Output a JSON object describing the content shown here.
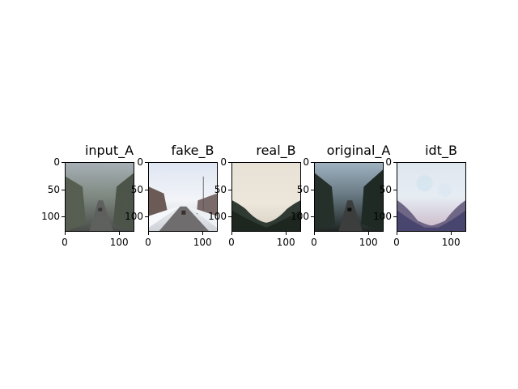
{
  "panels": [
    {
      "title": "input_A",
      "scene": "noisy-road"
    },
    {
      "title": "fake_B",
      "scene": "snowy-road"
    },
    {
      "title": "real_B",
      "scene": "foggy-hill"
    },
    {
      "title": "original_A",
      "scene": "dark-road"
    },
    {
      "title": "idt_B",
      "scene": "hazy-bluish"
    }
  ],
  "axis": {
    "yticks": [
      "0",
      "50",
      "100"
    ],
    "xticks": [
      "0",
      "100"
    ]
  }
}
